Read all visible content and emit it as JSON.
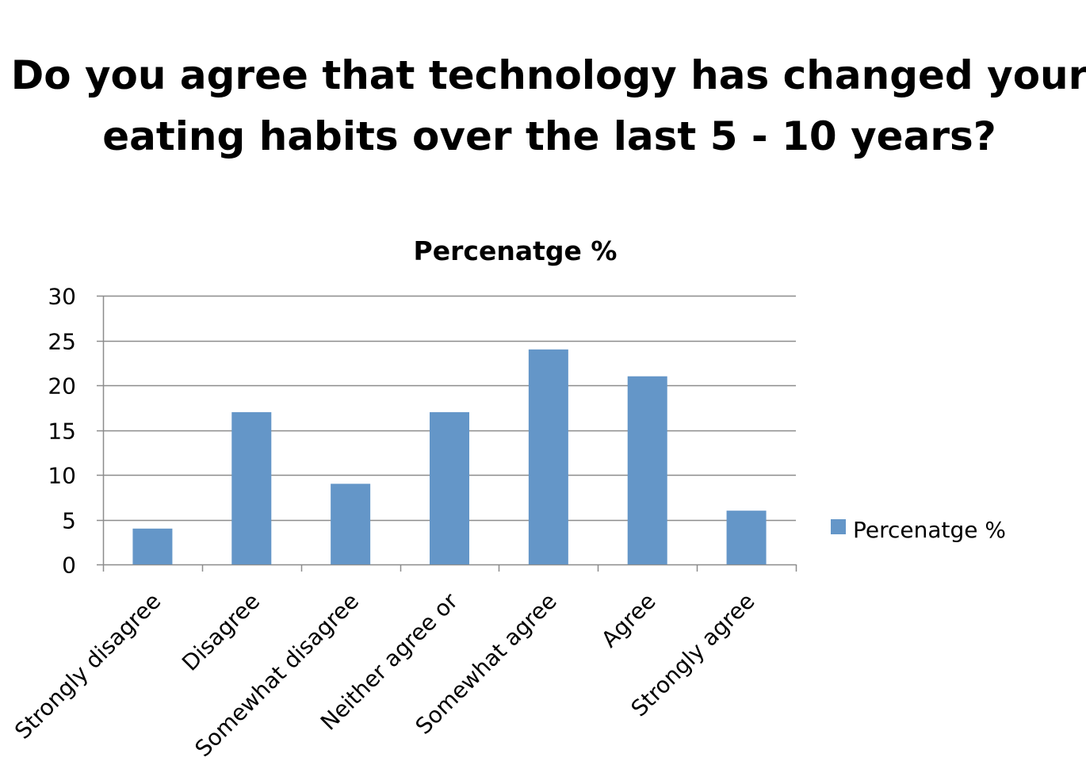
{
  "page_title": {
    "line1": "Do you agree that technology has changed your",
    "line2": "eating habits over the last 5 - 10 years?"
  },
  "chart_data": {
    "type": "bar",
    "title": "Percenatge %",
    "categories": [
      "Strongly disagree",
      "Disagree",
      "Somewhat disagree",
      "Neither agree or",
      "Somewhat agree",
      "Agree",
      "Strongly agree"
    ],
    "series": [
      {
        "name": "Percenatge %",
        "values": [
          4,
          17,
          9,
          17,
          24,
          21,
          6
        ],
        "color": "#6496c8"
      }
    ],
    "xlabel": "",
    "ylabel": "",
    "ylim": [
      0,
      30
    ],
    "yticks": [
      0,
      5,
      10,
      15,
      20,
      25,
      30
    ],
    "grid": true,
    "gridColor": "#8c8c8c",
    "legend_position": "right"
  }
}
